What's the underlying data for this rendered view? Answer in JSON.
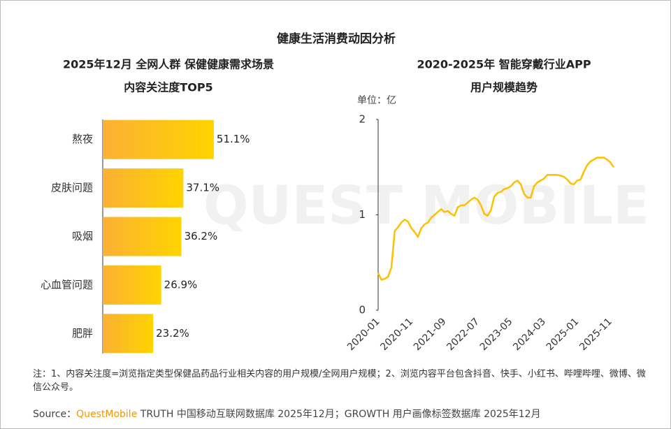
{
  "title": "健康生活消费动因分析",
  "watermark": "QUEST MOBILE",
  "chart_data": [
    {
      "type": "hbar",
      "title": [
        "2025年12月 全网人群 保健健康需求场景",
        "内容关注度TOP5"
      ],
      "categories": [
        "熬夜",
        "皮肤问题",
        "吸烟",
        "心血管问题",
        "肥胖"
      ],
      "values": [
        51.1,
        37.1,
        36.2,
        26.9,
        23.2
      ],
      "value_labels": [
        "51.1%",
        "37.1%",
        "36.2%",
        "26.9%",
        "23.2%"
      ],
      "gradient": [
        "#fbb034",
        "#ffd400"
      ]
    },
    {
      "type": "line",
      "title": [
        "2020-2025年 智能穿戴行业APP",
        "用户规模趋势"
      ],
      "y_label": "单位：亿",
      "categories": [
        "2020-01",
        null,
        null,
        null,
        null,
        null,
        null,
        null,
        null,
        null,
        "2020-11",
        null,
        null,
        null,
        null,
        null,
        null,
        null,
        null,
        null,
        "2021-09",
        null,
        null,
        null,
        null,
        null,
        null,
        null,
        null,
        null,
        "2022-07",
        null,
        null,
        null,
        null,
        null,
        null,
        null,
        null,
        null,
        "2023-05",
        null,
        null,
        null,
        null,
        null,
        null,
        null,
        null,
        null,
        "2024-03",
        null,
        null,
        null,
        null,
        null,
        null,
        null,
        null,
        null,
        "2025-01",
        null,
        null,
        null,
        null,
        null,
        null,
        null,
        null,
        null,
        "2025-11",
        null
      ],
      "values": [
        0.39,
        0.32,
        0.33,
        0.35,
        0.45,
        0.83,
        0.87,
        0.92,
        0.95,
        0.93,
        0.86,
        0.82,
        0.77,
        0.86,
        0.9,
        0.92,
        0.97,
        1.0,
        1.03,
        1.06,
        1.03,
        1.04,
        1.01,
        0.99,
        1.08,
        1.1,
        1.1,
        1.13,
        1.16,
        1.18,
        1.16,
        1.1,
        1.01,
        0.99,
        1.05,
        1.19,
        1.23,
        1.24,
        1.27,
        1.28,
        1.3,
        1.34,
        1.36,
        1.32,
        1.22,
        1.18,
        1.18,
        1.3,
        1.34,
        1.36,
        1.38,
        1.42,
        1.42,
        1.42,
        1.42,
        1.41,
        1.4,
        1.37,
        1.33,
        1.32,
        1.36,
        1.37,
        1.45,
        1.52,
        1.56,
        1.58,
        1.6,
        1.6,
        1.6,
        1.58,
        1.55,
        1.5
      ],
      "color": "#ffc000",
      "ylim": [
        0,
        2
      ],
      "yticks": [
        0,
        1,
        2
      ]
    }
  ],
  "note": "注：1、内容关注度=浏览指定类型保健品药品行业相关内容的用户规模/全网用户规模；2、浏览内容平台包含抖音、快手、小红书、哔哩哔哩、微博、微信公众号。",
  "source": {
    "label": "Source：",
    "brand": "QuestMobile",
    "text": "TRUTH 中国移动互联网数据库 2025年12月；GROWTH 用户画像标签数据库 2025年12月"
  }
}
